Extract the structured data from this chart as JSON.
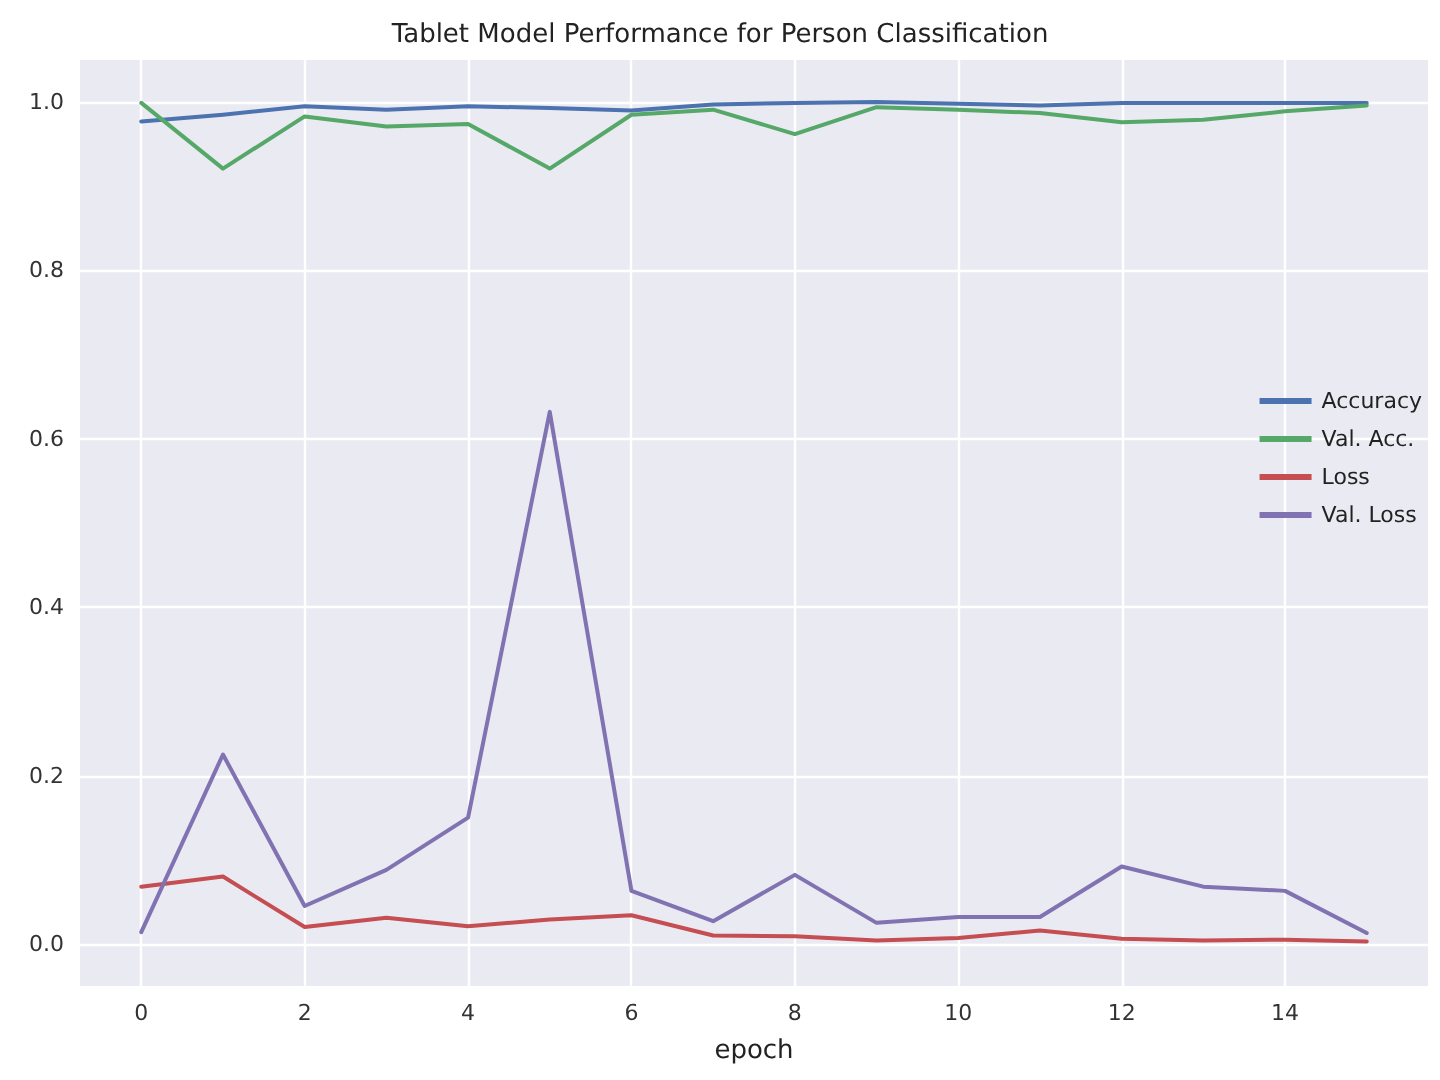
{
  "chart_data": {
    "type": "line",
    "title": "Tablet Model Performance for Person Classification",
    "xlabel": "epoch",
    "x": [
      0,
      1,
      2,
      3,
      4,
      5,
      6,
      7,
      8,
      9,
      10,
      11,
      12,
      13,
      14,
      15
    ],
    "series": [
      {
        "name": "Accuracy",
        "color": "#4c72b0",
        "values": [
          0.977,
          0.985,
          0.995,
          0.991,
          0.995,
          0.993,
          0.99,
          0.997,
          0.999,
          1.0,
          0.998,
          0.996,
          0.999,
          0.999,
          0.999,
          0.999
        ]
      },
      {
        "name": "Val. Acc.",
        "color": "#55a868",
        "values": [
          0.999,
          0.921,
          0.983,
          0.971,
          0.974,
          0.921,
          0.985,
          0.991,
          0.962,
          0.994,
          0.991,
          0.987,
          0.976,
          0.979,
          0.989,
          0.996
        ]
      },
      {
        "name": "Loss",
        "color": "#c44e52",
        "values": [
          0.068,
          0.08,
          0.02,
          0.031,
          0.021,
          0.029,
          0.034,
          0.01,
          0.009,
          0.004,
          0.007,
          0.016,
          0.006,
          0.004,
          0.005,
          0.003
        ]
      },
      {
        "name": "Val. Loss",
        "color": "#8172b2",
        "values": [
          0.014,
          0.225,
          0.045,
          0.088,
          0.15,
          0.632,
          0.063,
          0.027,
          0.082,
          0.025,
          0.032,
          0.032,
          0.092,
          0.068,
          0.063,
          0.013
        ]
      }
    ],
    "xlim": [
      -0.75,
      15.75
    ],
    "xticks": [
      0,
      2,
      4,
      6,
      8,
      10,
      12,
      14
    ],
    "ylim": [
      -0.05,
      1.05
    ],
    "yticks": [
      {
        "value": 0,
        "label": "0.0"
      },
      {
        "value": 0.2,
        "label": "0.2"
      },
      {
        "value": 0.4,
        "label": "0.4"
      },
      {
        "value": 0.6,
        "label": "0.6"
      },
      {
        "value": 0.8,
        "label": "0.8"
      },
      {
        "value": 1,
        "label": "1.0"
      }
    ],
    "grid": true,
    "legend": "right",
    "marker": "none",
    "line_style": "solid"
  }
}
